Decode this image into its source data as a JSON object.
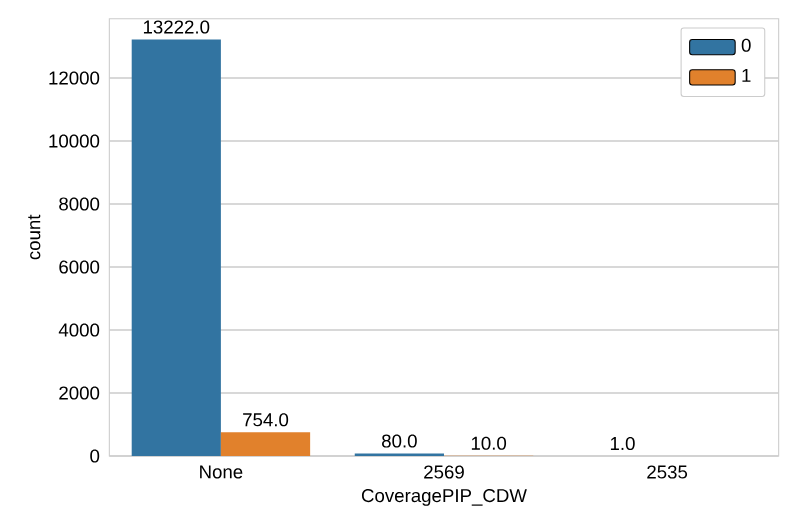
{
  "chart_data": {
    "type": "bar",
    "xlabel": "CoveragePIP_CDW",
    "ylabel": "count",
    "categories": [
      "None",
      "2569",
      "2535"
    ],
    "series": [
      {
        "name": "0",
        "color": "#3274a1",
        "values": [
          13222,
          80,
          1
        ],
        "value_labels": [
          "13222.0",
          "80.0",
          "1.0"
        ]
      },
      {
        "name": "1",
        "color": "#e1812c",
        "values": [
          754,
          10,
          null
        ],
        "value_labels": [
          "754.0",
          "10.0",
          null
        ]
      }
    ],
    "ylim": [
      0,
      13883
    ],
    "yticks": [
      0,
      2000,
      4000,
      6000,
      8000,
      10000,
      12000
    ],
    "grid": "y",
    "legend": "top right"
  }
}
